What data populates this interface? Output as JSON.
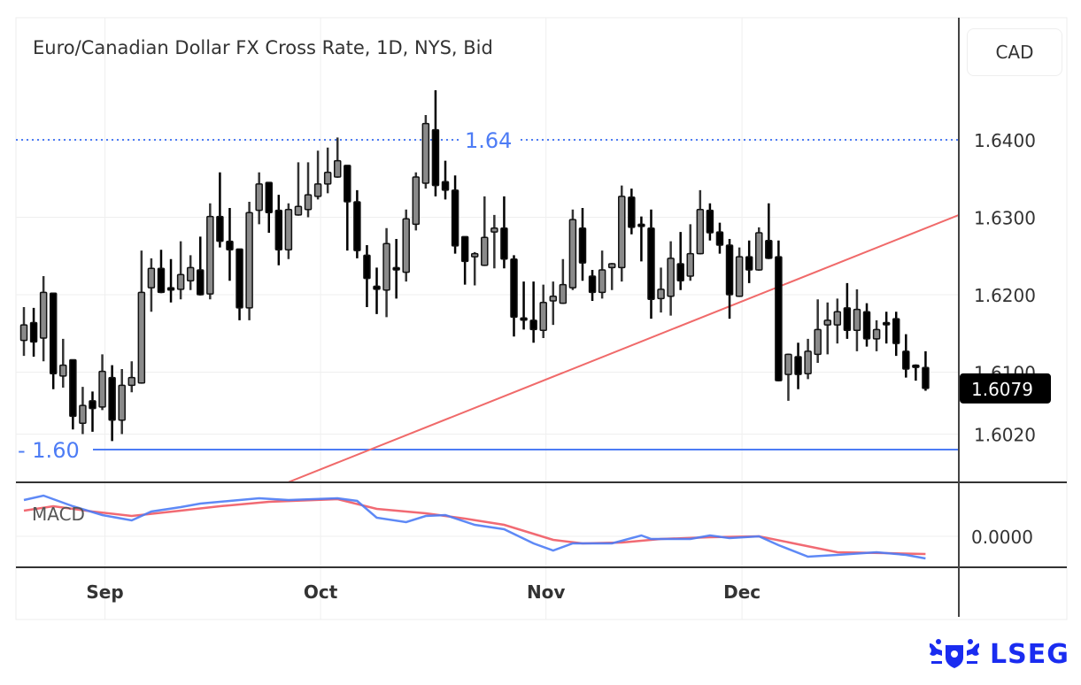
{
  "chart_data": {
    "type": "candlestick",
    "title": "Euro/Canadian Dollar FX Cross Rate, 1D, NYS, Bid",
    "currency": "CAD",
    "last_price": "1.6079",
    "y_ticks": [
      "1.6400",
      "1.6300",
      "1.6200",
      "1.6100",
      "1.6020"
    ],
    "y_tick_values": [
      1.64,
      1.63,
      1.62,
      1.61,
      1.602
    ],
    "x_ticks": [
      {
        "label": "Sep",
        "index": 8
      },
      {
        "label": "Oct",
        "index": 30
      },
      {
        "label": "Nov",
        "index": 53
      },
      {
        "label": "Dec",
        "index": 73
      }
    ],
    "levels": [
      {
        "label": "1.64",
        "value": 1.64,
        "style": "dotted",
        "color": "#4d7cf5"
      },
      {
        "label": "1.60",
        "value": 1.6,
        "style": "solid",
        "color": "#4d7cf5"
      }
    ],
    "trendline": {
      "color": "#f06a6a",
      "points": [
        [
          27,
          1.5958
        ],
        [
          95.4,
          1.6303
        ]
      ]
    },
    "colors": {
      "up": "#8a8a8a",
      "down": "#000000",
      "macd": "#4d7cf5",
      "signal": "#f05a64"
    },
    "candles_ohlc": [
      [
        1.6141,
        1.6184,
        1.6121,
        1.6161
      ],
      [
        1.6164,
        1.6183,
        1.612,
        1.6139
      ],
      [
        1.6144,
        1.6224,
        1.6114,
        1.6203
      ],
      [
        1.6202,
        1.6202,
        1.6078,
        1.6098
      ],
      [
        1.6095,
        1.6143,
        1.608,
        1.6109
      ],
      [
        1.6116,
        1.6116,
        1.6026,
        1.6043
      ],
      [
        1.6034,
        1.6081,
        1.602,
        1.6057
      ],
      [
        1.6063,
        1.6075,
        1.6023,
        1.6053
      ],
      [
        1.6055,
        1.6123,
        1.6051,
        1.6101
      ],
      [
        1.6093,
        1.6109,
        1.6011,
        1.6038
      ],
      [
        1.6038,
        1.6104,
        1.602,
        1.6083
      ],
      [
        1.6083,
        1.6114,
        1.6074,
        1.6093
      ],
      [
        1.6086,
        1.6257,
        1.6085,
        1.6203
      ],
      [
        1.6209,
        1.6247,
        1.6178,
        1.6234
      ],
      [
        1.6234,
        1.6258,
        1.6202,
        1.6203
      ],
      [
        1.6209,
        1.6246,
        1.619,
        1.6206
      ],
      [
        1.6207,
        1.6269,
        1.6194,
        1.6226
      ],
      [
        1.6218,
        1.6251,
        1.6206,
        1.6235
      ],
      [
        1.6232,
        1.6275,
        1.6199,
        1.62
      ],
      [
        1.6201,
        1.6318,
        1.6194,
        1.6301
      ],
      [
        1.6301,
        1.6358,
        1.6261,
        1.6269
      ],
      [
        1.6269,
        1.6312,
        1.6218,
        1.6258
      ],
      [
        1.6259,
        1.6259,
        1.6167,
        1.6183
      ],
      [
        1.6183,
        1.632,
        1.6167,
        1.6306
      ],
      [
        1.6309,
        1.6358,
        1.6291,
        1.6343
      ],
      [
        1.6345,
        1.6345,
        1.628,
        1.6306
      ],
      [
        1.6309,
        1.6329,
        1.6238,
        1.6258
      ],
      [
        1.6258,
        1.6318,
        1.6246,
        1.631
      ],
      [
        1.6303,
        1.6371,
        1.6302,
        1.6314
      ],
      [
        1.631,
        1.6371,
        1.63,
        1.6329
      ],
      [
        1.6327,
        1.6386,
        1.6323,
        1.6343
      ],
      [
        1.6343,
        1.639,
        1.6331,
        1.6358
      ],
      [
        1.6352,
        1.6403,
        1.6351,
        1.6373
      ],
      [
        1.6367,
        1.6367,
        1.6257,
        1.632
      ],
      [
        1.632,
        1.6335,
        1.6247,
        1.6257
      ],
      [
        1.6251,
        1.6264,
        1.6184,
        1.6221
      ],
      [
        1.6211,
        1.6235,
        1.6175,
        1.6207
      ],
      [
        1.6206,
        1.6286,
        1.6171,
        1.6266
      ],
      [
        1.6235,
        1.6272,
        1.6195,
        1.6232
      ],
      [
        1.6229,
        1.631,
        1.6217,
        1.6298
      ],
      [
        1.6291,
        1.6358,
        1.6283,
        1.6352
      ],
      [
        1.6344,
        1.6432,
        1.6337,
        1.6421
      ],
      [
        1.6413,
        1.6464,
        1.6327,
        1.6341
      ],
      [
        1.6346,
        1.6373,
        1.6323,
        1.6335
      ],
      [
        1.6335,
        1.6354,
        1.6253,
        1.6263
      ],
      [
        1.6275,
        1.6275,
        1.6213,
        1.6243
      ],
      [
        1.6249,
        1.6255,
        1.6212,
        1.6253
      ],
      [
        1.6238,
        1.6327,
        1.6237,
        1.6274
      ],
      [
        1.6281,
        1.6303,
        1.6234,
        1.6286
      ],
      [
        1.6286,
        1.6327,
        1.6234,
        1.6246
      ],
      [
        1.6246,
        1.6251,
        1.6146,
        1.6171
      ],
      [
        1.617,
        1.6217,
        1.6155,
        1.6169
      ],
      [
        1.6167,
        1.6217,
        1.6138,
        1.6155
      ],
      [
        1.6154,
        1.6213,
        1.6144,
        1.619
      ],
      [
        1.6192,
        1.6217,
        1.6161,
        1.6198
      ],
      [
        1.6189,
        1.6246,
        1.6188,
        1.6213
      ],
      [
        1.6209,
        1.631,
        1.6206,
        1.6297
      ],
      [
        1.6286,
        1.6312,
        1.6218,
        1.6241
      ],
      [
        1.6224,
        1.6232,
        1.6192,
        1.6203
      ],
      [
        1.6203,
        1.6257,
        1.6195,
        1.6232
      ],
      [
        1.6235,
        1.6241,
        1.6206,
        1.624
      ],
      [
        1.6235,
        1.6341,
        1.6217,
        1.6327
      ],
      [
        1.6326,
        1.6337,
        1.6278,
        1.6287
      ],
      [
        1.6291,
        1.6301,
        1.6243,
        1.629
      ],
      [
        1.6286,
        1.631,
        1.6169,
        1.6194
      ],
      [
        1.6195,
        1.6235,
        1.6177,
        1.6207
      ],
      [
        1.6198,
        1.6269,
        1.6173,
        1.6247
      ],
      [
        1.624,
        1.6281,
        1.6206,
        1.6218
      ],
      [
        1.6224,
        1.6291,
        1.6218,
        1.6253
      ],
      [
        1.6253,
        1.6335,
        1.6252,
        1.631
      ],
      [
        1.6309,
        1.6318,
        1.627,
        1.628
      ],
      [
        1.6281,
        1.6293,
        1.6253,
        1.6264
      ],
      [
        1.6264,
        1.6272,
        1.6169,
        1.62
      ],
      [
        1.6198,
        1.6261,
        1.6197,
        1.6249
      ],
      [
        1.6249,
        1.627,
        1.6215,
        1.6232
      ],
      [
        1.6232,
        1.6287,
        1.6231,
        1.628
      ],
      [
        1.627,
        1.6318,
        1.6246,
        1.6247
      ],
      [
        1.6249,
        1.627,
        1.6088,
        1.6089
      ],
      [
        1.6097,
        1.6124,
        1.6063,
        1.6123
      ],
      [
        1.612,
        1.6138,
        1.6078,
        1.6097
      ],
      [
        1.6098,
        1.6143,
        1.6091,
        1.6127
      ],
      [
        1.6123,
        1.6194,
        1.6112,
        1.6155
      ],
      [
        1.6161,
        1.619,
        1.6123,
        1.6167
      ],
      [
        1.6161,
        1.6195,
        1.6137,
        1.6178
      ],
      [
        1.6183,
        1.6215,
        1.6143,
        1.6154
      ],
      [
        1.6154,
        1.6207,
        1.6127,
        1.6181
      ],
      [
        1.6178,
        1.6189,
        1.6133,
        1.6143
      ],
      [
        1.6143,
        1.6167,
        1.6127,
        1.6155
      ],
      [
        1.6164,
        1.6178,
        1.6137,
        1.6163
      ],
      [
        1.6169,
        1.6178,
        1.6121,
        1.6137
      ],
      [
        1.6127,
        1.6149,
        1.6093,
        1.6104
      ],
      [
        1.6109,
        1.611,
        1.6089,
        1.6108
      ],
      [
        1.6106,
        1.6127,
        1.6076,
        1.6079
      ]
    ],
    "macd": {
      "label": "MACD",
      "y_ticks": [
        "0.0000"
      ],
      "macd_line": [
        [
          0,
          0.0041
        ],
        [
          2,
          0.0046
        ],
        [
          5,
          0.0034
        ],
        [
          8,
          0.0024
        ],
        [
          11,
          0.0018
        ],
        [
          13,
          0.0028
        ],
        [
          16,
          0.0033
        ],
        [
          18,
          0.0037
        ],
        [
          21,
          0.004
        ],
        [
          24,
          0.0043
        ],
        [
          27,
          0.0041
        ],
        [
          32,
          0.0043
        ],
        [
          34,
          0.004
        ],
        [
          36,
          0.0021
        ],
        [
          39,
          0.0016
        ],
        [
          41,
          0.0023
        ],
        [
          43,
          0.0024
        ],
        [
          46,
          0.0013
        ],
        [
          49,
          0.0008
        ],
        [
          52,
          -0.0008
        ],
        [
          54,
          -0.0016
        ],
        [
          56,
          -0.0008
        ],
        [
          60,
          -0.0008
        ],
        [
          63,
          0.0001
        ],
        [
          64,
          -0.0003
        ],
        [
          68,
          -0.0003
        ],
        [
          70,
          0.0001
        ],
        [
          72,
          -0.0002
        ],
        [
          75,
          0.0
        ],
        [
          77,
          -0.001
        ],
        [
          80,
          -0.0023
        ],
        [
          83,
          -0.0021
        ],
        [
          87,
          -0.0018
        ],
        [
          90,
          -0.0021
        ],
        [
          92,
          -0.0025
        ]
      ],
      "signal_line": [
        [
          0,
          0.0029
        ],
        [
          3,
          0.0034
        ],
        [
          7,
          0.0028
        ],
        [
          11,
          0.0023
        ],
        [
          16,
          0.0029
        ],
        [
          20,
          0.0034
        ],
        [
          25,
          0.0039
        ],
        [
          32,
          0.0042
        ],
        [
          36,
          0.0031
        ],
        [
          41,
          0.0026
        ],
        [
          45,
          0.002
        ],
        [
          49,
          0.0013
        ],
        [
          54,
          -0.0004
        ],
        [
          57,
          -0.0008
        ],
        [
          61,
          -0.0007
        ],
        [
          65,
          -0.0003
        ],
        [
          70,
          -0.0001
        ],
        [
          75,
          0.0
        ],
        [
          79,
          -0.0009
        ],
        [
          83,
          -0.0018
        ],
        [
          88,
          -0.0019
        ],
        [
          92,
          -0.002
        ]
      ]
    }
  },
  "brand": {
    "logo_text": "LSEG",
    "color": "#1a2cf0"
  }
}
